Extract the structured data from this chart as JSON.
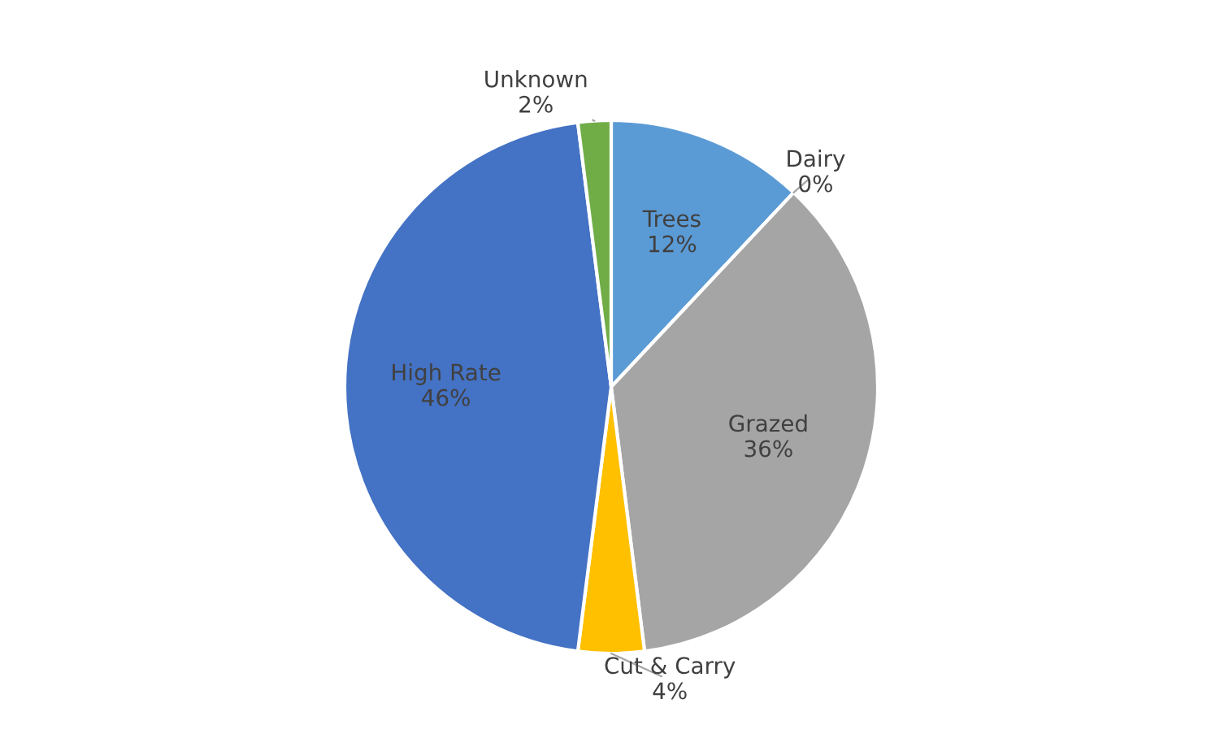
{
  "chart_data": {
    "type": "pie",
    "categories": [
      "Trees",
      "Dairy",
      "Grazed",
      "Cut & Carry",
      "High Rate",
      "Unknown"
    ],
    "values": [
      12,
      0,
      36,
      4,
      46,
      2
    ],
    "value_labels": [
      "12%",
      "0%",
      "36%",
      "4%",
      "46%",
      "2%"
    ],
    "colors": [
      "#5b9bd5",
      "#ed7d31",
      "#a5a5a5",
      "#ffc000",
      "#4472c4",
      "#70ad47"
    ],
    "legend": false
  }
}
